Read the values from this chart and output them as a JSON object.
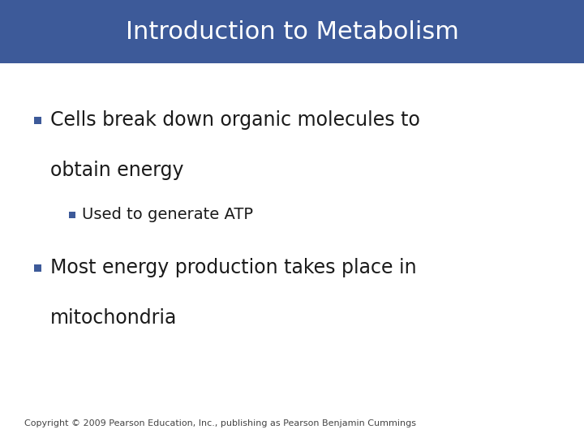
{
  "title": "Introduction to Metabolism",
  "title_bg_color": "#3d5a99",
  "title_text_color": "#ffffff",
  "title_fontsize": 22,
  "bg_color": "#ffffff",
  "bullet_color": "#3d5a99",
  "text_color": "#1a1a1a",
  "line1": "Cells break down organic molecules to",
  "line2": "obtain energy",
  "sub_line1": "Used to generate ATP",
  "line3": "Most energy production takes place in",
  "line4": "mitochondria",
  "copyright": "Copyright © 2009 Pearson Education, Inc., publishing as Pearson Benjamin Cummings",
  "main_fontsize": 17,
  "sub_fontsize": 14,
  "copyright_fontsize": 8
}
